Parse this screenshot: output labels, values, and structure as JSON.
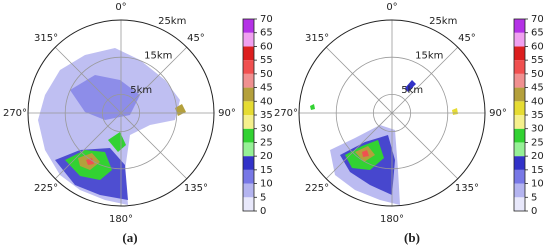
{
  "chart_data": [
    {
      "type": "polar",
      "caption": "(a)",
      "theta_ticks": [
        {
          "value": 0,
          "label": "0°"
        },
        {
          "value": 45,
          "label": "45°"
        },
        {
          "value": 90,
          "label": "90°"
        },
        {
          "value": 135,
          "label": "135°"
        },
        {
          "value": 180,
          "label": "180°"
        },
        {
          "value": 225,
          "label": "225°"
        },
        {
          "value": 270,
          "label": "270°"
        },
        {
          "value": 315,
          "label": "315°"
        }
      ],
      "rlim": [
        0,
        25
      ],
      "r_ticks": [
        {
          "value": 5,
          "label": "5km"
        },
        {
          "value": 15,
          "label": "15km"
        },
        {
          "value": 25,
          "label": "25km"
        }
      ],
      "colorbar": {
        "clim": [
          0,
          70
        ],
        "ticks": [
          0,
          5,
          10,
          15,
          20,
          25,
          30,
          35,
          40,
          45,
          50,
          55,
          60,
          65,
          70
        ],
        "colors": [
          "#e8e8fb",
          "#b4b4f0",
          "#7878e6",
          "#3232c8",
          "#96f096",
          "#32d232",
          "#f5f08c",
          "#e6dc32",
          "#b4a03c",
          "#f09090",
          "#f05050",
          "#dc1e1e",
          "#f0a0f0",
          "#b432e6"
        ]
      }
    },
    {
      "type": "polar",
      "caption": "(b)",
      "theta_ticks": [
        {
          "value": 0,
          "label": "0°"
        },
        {
          "value": 45,
          "label": "45°"
        },
        {
          "value": 90,
          "label": "90°"
        },
        {
          "value": 135,
          "label": "135°"
        },
        {
          "value": 180,
          "label": "180°"
        },
        {
          "value": 225,
          "label": "225°"
        },
        {
          "value": 270,
          "label": "270°"
        },
        {
          "value": 315,
          "label": "315°"
        }
      ],
      "rlim": [
        0,
        25
      ],
      "r_ticks": [
        {
          "value": 5,
          "label": "5km"
        },
        {
          "value": 15,
          "label": "15km"
        },
        {
          "value": 25,
          "label": "25km"
        }
      ],
      "colorbar": {
        "clim": [
          0,
          70
        ],
        "ticks": [
          0,
          5,
          10,
          15,
          20,
          25,
          30,
          35,
          40,
          45,
          50,
          55,
          60,
          65,
          70
        ],
        "colors": [
          "#e8e8fb",
          "#b4b4f0",
          "#7878e6",
          "#3232c8",
          "#96f096",
          "#32d232",
          "#f5f08c",
          "#e6dc32",
          "#b4a03c",
          "#f09090",
          "#f05050",
          "#dc1e1e",
          "#f0a0f0",
          "#b432e6"
        ]
      }
    }
  ]
}
